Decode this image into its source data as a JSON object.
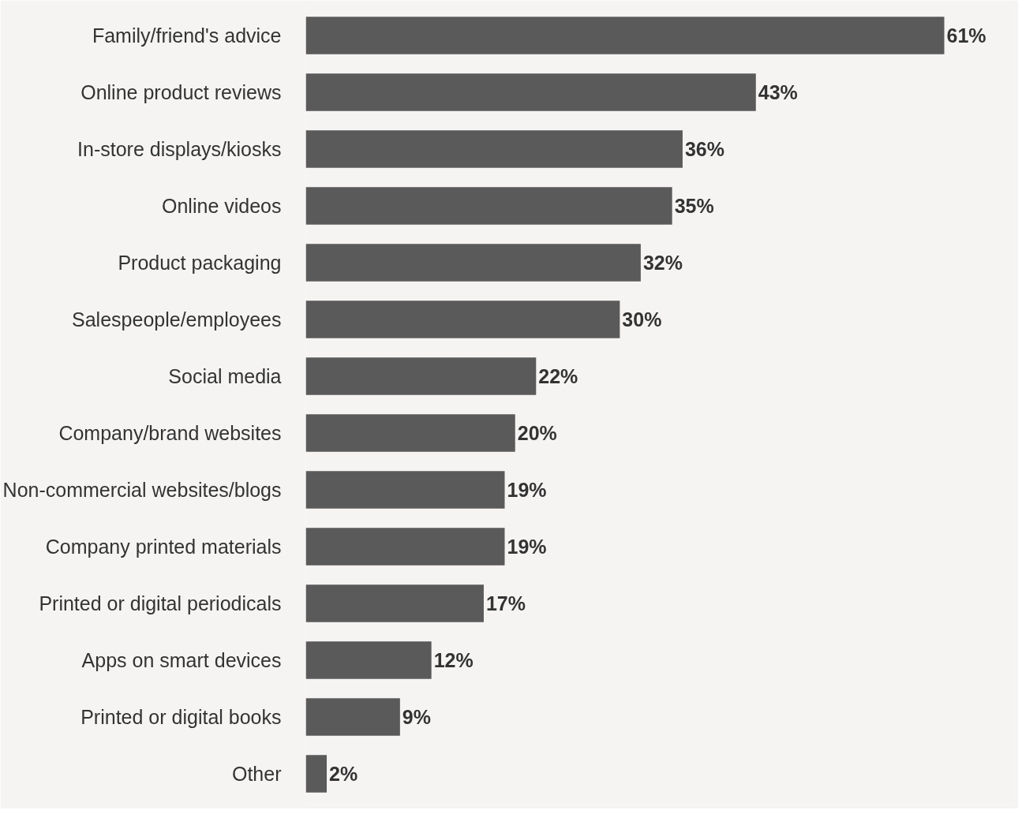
{
  "chart_data": {
    "type": "bar",
    "orientation": "horizontal",
    "categories": [
      "Family/friend's advice",
      "Online product reviews",
      "In-store displays/kiosks",
      "Online videos",
      "Product packaging",
      "Salespeople/employees",
      "Social media",
      "Company/brand websites",
      "Non-commercial websites/blogs",
      "Company printed materials",
      "Printed or digital periodicals",
      "Apps on smart devices",
      "Printed or digital books",
      "Other"
    ],
    "values": [
      61,
      43,
      36,
      35,
      32,
      30,
      22,
      20,
      19,
      19,
      17,
      12,
      9,
      2
    ],
    "value_labels": [
      "61%",
      "43%",
      "36%",
      "35%",
      "32%",
      "30%",
      "22%",
      "20%",
      "19%",
      "19%",
      "17%",
      "12%",
      "9%",
      "2%"
    ],
    "color": "#5a5a5a"
  }
}
